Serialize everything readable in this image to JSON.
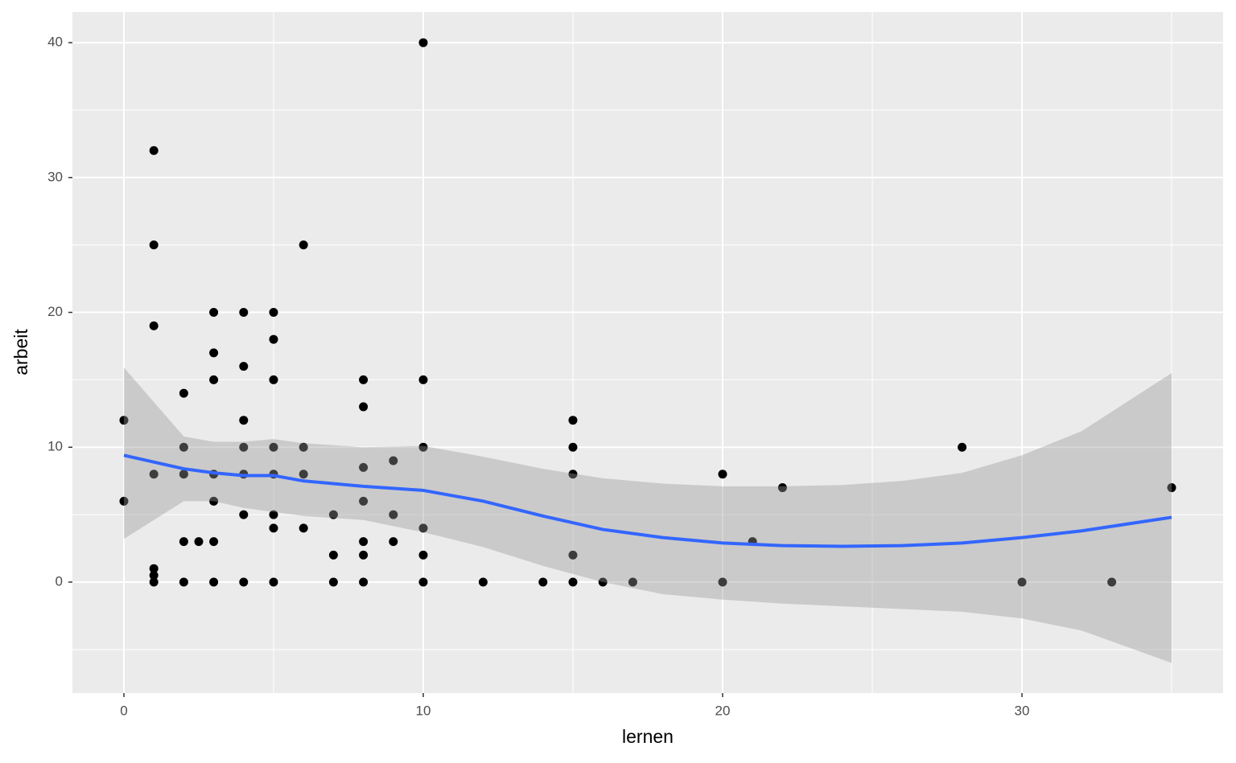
{
  "chart_data": {
    "type": "scatter",
    "x_label": "lernen",
    "y_label": "arbeit",
    "xlim": [
      -1.72,
      36.72
    ],
    "ylim": [
      -8.23,
      42.27
    ],
    "xticks": [
      0,
      10,
      20,
      30
    ],
    "yticks": [
      0,
      10,
      20,
      30,
      40
    ],
    "minor_xticks": [
      5,
      15,
      25,
      35
    ],
    "minor_yticks": [
      -5,
      5,
      15,
      25,
      35
    ],
    "grid": true,
    "background": "#ebebeb",
    "point_color": "#000000",
    "points": {
      "x": [
        0,
        0,
        1,
        1,
        1,
        1,
        1,
        1,
        1,
        2,
        2,
        2,
        2,
        2,
        2.5,
        3,
        3,
        3,
        3,
        3,
        3,
        3,
        4,
        4,
        4,
        4,
        4,
        4,
        4,
        5,
        5,
        5,
        5,
        5,
        5,
        5,
        5,
        6,
        6,
        6,
        6,
        7,
        7,
        7,
        8,
        8,
        8,
        8,
        8,
        8,
        8,
        9,
        9,
        9,
        10,
        10,
        10,
        10,
        10,
        10,
        12,
        14,
        15,
        15,
        15,
        15,
        15,
        16,
        17,
        20,
        20,
        21,
        22,
        28,
        30,
        33,
        35
      ],
      "y": [
        12,
        6,
        32,
        25,
        19,
        8,
        1,
        0.5,
        0,
        14,
        10,
        8,
        3,
        0,
        3,
        20,
        17,
        15,
        8,
        6,
        3,
        0,
        20,
        16,
        12,
        10,
        8,
        5,
        0,
        20,
        18,
        15,
        10,
        8,
        5,
        4,
        0,
        25,
        10,
        8,
        4,
        5,
        2,
        0,
        15,
        13,
        8.5,
        6,
        3,
        2,
        0,
        9,
        5,
        3,
        40,
        15,
        10,
        4,
        2,
        0,
        0,
        0,
        12,
        10,
        8,
        2,
        0,
        0,
        0,
        8,
        0,
        3,
        7,
        10,
        0,
        0,
        7
      ]
    },
    "smooth": {
      "color": "#3366ff",
      "band_color": "#999999",
      "x": [
        0,
        2,
        3,
        4,
        5,
        6,
        8,
        10,
        12,
        14,
        16,
        18,
        20,
        22,
        24,
        26,
        28,
        30,
        32,
        35
      ],
      "y": [
        9.4,
        8.4,
        8.1,
        7.9,
        7.9,
        7.5,
        7.1,
        6.8,
        6.0,
        4.9,
        3.9,
        3.3,
        2.9,
        2.7,
        2.65,
        2.7,
        2.9,
        3.3,
        3.8,
        4.8
      ],
      "ymin": [
        3.2,
        6.0,
        6.0,
        5.5,
        5.2,
        4.9,
        4.6,
        3.7,
        2.6,
        1.2,
        0.0,
        -0.9,
        -1.3,
        -1.6,
        -1.8,
        -2.0,
        -2.2,
        -2.7,
        -3.6,
        -6.0
      ],
      "ymax": [
        15.9,
        10.8,
        10.4,
        10.4,
        10.6,
        10.3,
        10.0,
        10.1,
        9.3,
        8.4,
        7.7,
        7.3,
        7.1,
        7.1,
        7.2,
        7.5,
        8.1,
        9.4,
        11.2,
        15.5
      ]
    }
  }
}
